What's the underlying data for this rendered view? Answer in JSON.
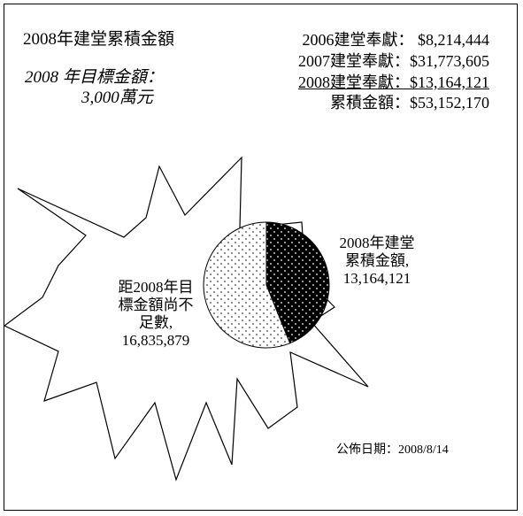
{
  "header": {
    "title": "2008年建堂累積金額",
    "target_label": "2008 年目標金額：",
    "target_value": "3,000萬元"
  },
  "summary": [
    {
      "label": "2006建堂奉獻：",
      "value": "$8,214,444"
    },
    {
      "label": "2007建堂奉獻：",
      "value": "$31,773,605"
    },
    {
      "label": "2008建堂奉獻：",
      "value": "$13,164,121"
    },
    {
      "label": "累積金額：",
      "value": "$53,152,170"
    }
  ],
  "chart_data": {
    "type": "pie",
    "slices": [
      {
        "lines": [
          "2008年建堂",
          "累積金額,",
          "13,164,121"
        ],
        "value": 13164121,
        "pattern": "white-dots-on-black"
      },
      {
        "lines": [
          "距2008年目",
          "標金額尚不",
          "足數,",
          "16,835,879"
        ],
        "value": 16835879,
        "pattern": "black-dots-on-white"
      }
    ],
    "total": 30000000
  },
  "footer": {
    "pubdate": "公佈日期：2008/8/14"
  }
}
